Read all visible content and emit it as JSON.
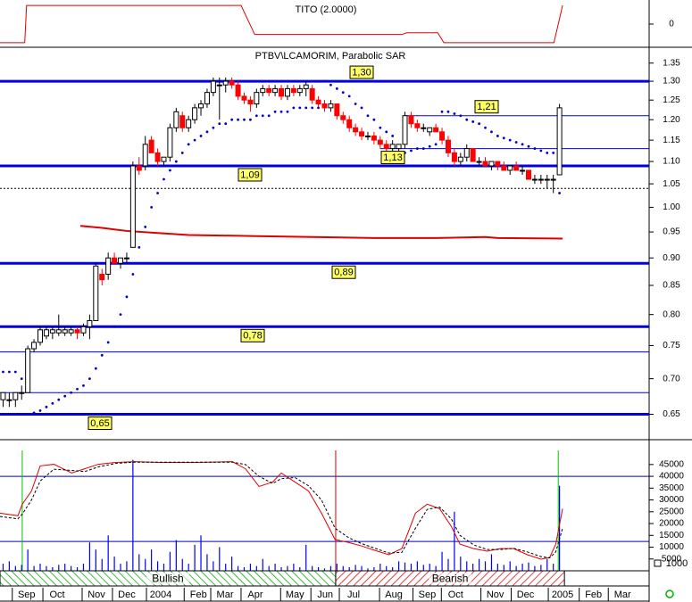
{
  "chart_data": [
    {
      "type": "line",
      "title": "TITO (2.0000)",
      "color": "#e00000",
      "x": [
        -0.5,
        3.5,
        3.8,
        38.5,
        40.7,
        64.5,
        65.3,
        70.3,
        71.3,
        89.1,
        90.5
      ],
      "values": [
        -1,
        -1,
        1,
        1,
        -0.56,
        -0.56,
        -0.47,
        -0.47,
        -1,
        -1,
        1
      ],
      "xlim": [
        -0.5,
        104.5
      ],
      "ylim": [
        -1.2,
        1.2
      ],
      "yticks": [
        0
      ]
    },
    {
      "type": "candlestick",
      "title": "PTBV\\LCAMORIM, Parabolic SAR",
      "log_scale": true,
      "up_color": "#ffffff",
      "down_color": "#ff0000",
      "open": [
        0.67,
        0.67,
        0.67,
        0.68,
        0.68,
        0.745,
        0.755,
        0.765,
        0.77,
        0.77,
        0.77,
        0.77,
        0.775,
        0.77,
        0.78,
        0.79,
        0.87,
        0.87,
        0.9,
        0.89,
        0.9,
        0.92,
        1.09,
        1.09,
        1.15,
        1.12,
        1.1,
        1.11,
        1.18,
        1.21,
        1.18,
        1.2,
        1.23,
        1.24,
        1.27,
        1.29,
        1.29,
        1.3,
        1.29,
        1.26,
        1.25,
        1.24,
        1.27,
        1.28,
        1.27,
        1.28,
        1.26,
        1.28,
        1.27,
        1.28,
        1.28,
        1.25,
        1.24,
        1.23,
        1.24,
        1.21,
        1.2,
        1.18,
        1.17,
        1.16,
        1.16,
        1.15,
        1.14,
        1.13,
        1.13,
        1.14,
        1.21,
        1.19,
        1.18,
        1.17,
        1.18,
        1.17,
        1.15,
        1.12,
        1.1,
        1.11,
        1.13,
        1.1,
        1.1,
        1.09,
        1.1,
        1.09,
        1.08,
        1.09,
        1.08,
        1.08,
        1.06,
        1.06,
        1.06,
        1.06,
        1.07
      ],
      "high": [
        0.68,
        0.68,
        0.68,
        0.69,
        0.75,
        0.76,
        0.78,
        0.78,
        0.78,
        0.8,
        0.78,
        0.78,
        0.78,
        0.785,
        0.8,
        0.89,
        0.88,
        0.91,
        0.91,
        0.9,
        0.91,
        1.1,
        1.11,
        1.16,
        1.16,
        1.13,
        1.11,
        1.19,
        1.23,
        1.22,
        1.21,
        1.24,
        1.25,
        1.28,
        1.31,
        1.31,
        1.31,
        1.31,
        1.3,
        1.27,
        1.26,
        1.28,
        1.29,
        1.29,
        1.29,
        1.29,
        1.29,
        1.29,
        1.29,
        1.3,
        1.29,
        1.26,
        1.25,
        1.25,
        1.24,
        1.22,
        1.21,
        1.19,
        1.18,
        1.17,
        1.17,
        1.16,
        1.15,
        1.15,
        1.14,
        1.22,
        1.22,
        1.2,
        1.19,
        1.18,
        1.19,
        1.18,
        1.16,
        1.13,
        1.12,
        1.14,
        1.13,
        1.11,
        1.11,
        1.1,
        1.1,
        1.1,
        1.09,
        1.1,
        1.09,
        1.08,
        1.07,
        1.07,
        1.07,
        1.07,
        1.24
      ],
      "low": [
        0.66,
        0.66,
        0.66,
        0.67,
        0.68,
        0.74,
        0.75,
        0.76,
        0.76,
        0.765,
        0.765,
        0.765,
        0.76,
        0.765,
        0.76,
        0.79,
        0.85,
        0.86,
        0.89,
        0.88,
        0.89,
        0.92,
        1.07,
        1.08,
        1.12,
        1.09,
        1.09,
        1.1,
        1.17,
        1.17,
        1.17,
        1.19,
        1.21,
        1.23,
        1.26,
        1.2,
        1.27,
        1.28,
        1.25,
        1.24,
        1.22,
        1.23,
        1.26,
        1.26,
        1.26,
        1.25,
        1.25,
        1.26,
        1.26,
        1.26,
        1.24,
        1.23,
        1.22,
        1.22,
        1.2,
        1.19,
        1.17,
        1.16,
        1.15,
        1.15,
        1.14,
        1.13,
        1.12,
        1.12,
        1.12,
        1.13,
        1.18,
        1.17,
        1.17,
        1.16,
        1.17,
        1.14,
        1.11,
        1.09,
        1.09,
        1.1,
        1.1,
        1.09,
        1.09,
        1.08,
        1.08,
        1.08,
        1.07,
        1.08,
        1.07,
        1.06,
        1.05,
        1.05,
        1.04,
        1.03,
        1.07
      ],
      "close": [
        0.68,
        0.67,
        0.68,
        0.68,
        0.745,
        0.755,
        0.775,
        0.775,
        0.775,
        0.775,
        0.775,
        0.775,
        0.77,
        0.78,
        0.79,
        0.885,
        0.86,
        0.9,
        0.89,
        0.9,
        0.9,
        1.09,
        1.08,
        1.14,
        1.12,
        1.1,
        1.11,
        1.18,
        1.22,
        1.18,
        1.2,
        1.23,
        1.24,
        1.27,
        1.3,
        1.29,
        1.3,
        1.29,
        1.26,
        1.25,
        1.24,
        1.27,
        1.28,
        1.27,
        1.28,
        1.26,
        1.28,
        1.27,
        1.28,
        1.29,
        1.25,
        1.24,
        1.23,
        1.24,
        1.21,
        1.2,
        1.18,
        1.17,
        1.16,
        1.16,
        1.15,
        1.14,
        1.13,
        1.14,
        1.14,
        1.21,
        1.19,
        1.18,
        1.18,
        1.18,
        1.17,
        1.15,
        1.12,
        1.1,
        1.11,
        1.13,
        1.1,
        1.1,
        1.09,
        1.1,
        1.09,
        1.08,
        1.09,
        1.08,
        1.08,
        1.06,
        1.06,
        1.06,
        1.06,
        1.06,
        1.23
      ],
      "sar": {
        "color": "#0000d0",
        "values": [
          0.71,
          0.71,
          0.71,
          0.7,
          0.65,
          0.652,
          0.655,
          0.66,
          0.665,
          0.67,
          0.675,
          0.68,
          0.685,
          0.69,
          0.7,
          0.715,
          0.735,
          0.755,
          0.78,
          0.8,
          0.83,
          0.87,
          0.92,
          0.96,
          1.0,
          1.03,
          1.06,
          1.08,
          1.1,
          1.12,
          1.14,
          1.15,
          1.16,
          1.17,
          1.18,
          1.19,
          1.19,
          1.2,
          1.2,
          1.2,
          1.2,
          1.21,
          1.21,
          1.21,
          1.22,
          1.22,
          1.22,
          1.23,
          1.23,
          1.23,
          1.23,
          1.23,
          1.3,
          1.29,
          1.28,
          1.27,
          1.26,
          1.24,
          1.23,
          1.21,
          1.2,
          1.18,
          1.17,
          1.16,
          1.12,
          1.12,
          1.125,
          1.13,
          1.13,
          1.135,
          1.14,
          1.22,
          1.22,
          1.215,
          1.21,
          1.2,
          1.195,
          1.19,
          1.18,
          1.17,
          1.16,
          1.155,
          1.15,
          1.145,
          1.14,
          1.135,
          1.13,
          1.125,
          1.12,
          1.12,
          1.03
        ]
      },
      "ma": {
        "color": "#e00000",
        "x": [
          12.5,
          16,
          20,
          25,
          30,
          40,
          50,
          60,
          70,
          78,
          80,
          90.5
        ],
        "values": [
          0.962,
          0.958,
          0.952,
          0.948,
          0.944,
          0.942,
          0.94,
          0.938,
          0.938,
          0.94,
          0.938,
          0.937
        ]
      },
      "levels": [
        {
          "value": 1.3,
          "label": "1,30",
          "color": "#0000e0",
          "width": 3
        },
        {
          "value": 1.21,
          "label": "1,21",
          "color": "#0000e0",
          "width": 1,
          "from": 65
        },
        {
          "value": 1.13,
          "label": "1,13",
          "color": "#0000e0",
          "width": 1,
          "from": 61
        },
        {
          "value": 1.09,
          "label": "1,09",
          "color": "#0000e0",
          "width": 3
        },
        {
          "value": 1.04,
          "color": "#000000",
          "width": 1,
          "dash": true
        },
        {
          "value": 0.89,
          "label": "0,89",
          "color": "#0000e0",
          "width": 3
        },
        {
          "value": 0.78,
          "label": "0,78",
          "color": "#0000e0",
          "width": 3
        },
        {
          "value": 0.74,
          "color": "#0000e0",
          "width": 1
        },
        {
          "value": 0.68,
          "color": "#0000e0",
          "width": 1
        },
        {
          "value": 0.65,
          "label": "0,65",
          "color": "#0000e0",
          "width": 3
        }
      ],
      "xlim": [
        -0.5,
        104.5
      ],
      "ylim": [
        0.62,
        1.39
      ],
      "yticks": [
        1.35,
        {
          "value": 1.3,
          "label": "1.30"
        },
        1.25,
        {
          "value": 1.2,
          "label": "1.20"
        },
        1.15,
        {
          "value": 1.1,
          "label": "1.10"
        },
        1.05,
        {
          "value": 1,
          "label": "1.00"
        },
        0.95,
        {
          "value": 0.9,
          "label": "0.90"
        },
        0.85,
        {
          "value": 0.8,
          "label": "0.80"
        },
        0.75,
        {
          "value": 0.7,
          "label": "0.70"
        },
        0.65
      ]
    },
    {
      "type": "bar",
      "color": "#0000ff",
      "unit": "1000",
      "values": [
        3000,
        4000,
        2000,
        2500,
        9000,
        2000,
        3000,
        2000,
        1500,
        2500,
        3000,
        2000,
        1500,
        3000,
        12000,
        9000,
        5000,
        15000,
        6000,
        3000,
        4000,
        47000,
        7000,
        5000,
        9000,
        4000,
        3000,
        8000,
        13000,
        5000,
        3000,
        11000,
        15000,
        7000,
        4000,
        10000,
        3000,
        6000,
        2000,
        1500,
        3000,
        2000,
        5000,
        2000,
        3000,
        1500,
        2000,
        3000,
        1500,
        11000,
        2000,
        1500,
        1000,
        2000,
        3000,
        2000,
        1500,
        2500,
        2000,
        1000,
        1500,
        3000,
        2000,
        1500,
        4000,
        3500,
        3000,
        4000,
        2500,
        3000,
        2000,
        8000,
        5000,
        25000,
        6000,
        4000,
        3000,
        5000,
        4000,
        7000,
        3000,
        2500,
        4000,
        2000,
        3000,
        3500,
        2000,
        2500,
        5000,
        3000,
        36000
      ],
      "lines": [
        {
          "color": "#e00000",
          "x": [
            -0.5,
            2.4,
            3.1,
            4.6,
            6.0,
            8.2,
            11.1,
            13.2,
            15.4,
            18.3,
            21.2,
            25.5,
            31.3,
            37.1,
            39.2,
            41.4,
            43.6,
            45.0,
            47.2,
            49.4,
            51.5,
            53.7,
            55.9,
            58.0,
            60.2,
            62.4,
            64.5,
            66.7,
            68.6,
            70.6,
            72.5,
            73.9,
            76.1,
            78.3,
            80.4,
            82.6,
            84.8,
            87.0,
            88.4,
            89.4,
            90.5
          ],
          "values": [
            24400,
            23300,
            28200,
            33800,
            44400,
            45100,
            41400,
            43200,
            45100,
            45900,
            46200,
            45900,
            45900,
            46200,
            43200,
            35700,
            37600,
            41400,
            37600,
            33800,
            24400,
            13200,
            12000,
            10500,
            8600,
            6800,
            9400,
            24400,
            28200,
            26300,
            18800,
            11300,
            9400,
            8300,
            9400,
            9400,
            6800,
            4900,
            5600,
            11300,
            26300
          ]
        },
        {
          "color": "#000000",
          "dash": true,
          "x": [
            -0.5,
            2.4,
            3.1,
            4.6,
            6.0,
            8.2,
            11.1,
            13.2,
            15.4,
            18.3,
            21.2,
            31.3,
            37.1,
            39.2,
            41.4,
            43.6,
            45.0,
            47.2,
            49.4,
            51.5,
            53.7,
            55.9,
            58.0,
            60.2,
            62.4,
            64.5,
            66.7,
            68.6,
            70.6,
            72.5,
            73.9,
            76.1,
            78.3,
            80.4,
            82.6,
            84.8,
            87.0,
            88.4,
            89.4,
            90.5
          ],
          "values": [
            23000,
            22000,
            24000,
            30000,
            38000,
            43000,
            42500,
            42000,
            44000,
            45500,
            46000,
            46000,
            46000,
            45000,
            40000,
            37000,
            39000,
            39500,
            36000,
            30000,
            18000,
            14000,
            11500,
            9500,
            7500,
            7800,
            18000,
            26000,
            27000,
            22000,
            15000,
            11000,
            9000,
            9000,
            9500,
            8000,
            6000,
            5500,
            8000,
            18000
          ]
        }
      ],
      "levels": [
        {
          "value": 40000,
          "color": "#0000c0"
        },
        {
          "value": 12400,
          "color": "#0000c0"
        }
      ],
      "signals": [
        {
          "x": 3.1,
          "color": "#00c000"
        },
        {
          "x": 53.8,
          "color": "#e00000"
        },
        {
          "x": 89.8,
          "color": "#00c000"
        }
      ],
      "bands": [
        {
          "label": "Bullish",
          "from": -0.5,
          "to": 53.8,
          "color": "#00a000"
        },
        {
          "label": "Bearish",
          "from": 53.8,
          "to": 90.8,
          "color": "#e00000"
        }
      ],
      "xlim": [
        -0.5,
        104.5
      ],
      "ylim": [
        0,
        54000
      ],
      "yticks": [
        45000,
        40000,
        35000,
        30000,
        25000,
        20000,
        15000,
        10000,
        5000
      ],
      "xticks": [
        {
          "value": 3.8,
          "label": "Sep"
        },
        {
          "value": 8.75,
          "label": "Oct"
        },
        {
          "value": 15.1,
          "label": "Nov"
        },
        {
          "value": 20.0,
          "label": "Dec"
        },
        {
          "value": 25.5,
          "label": "2004"
        },
        {
          "value": 31.6,
          "label": "Feb"
        },
        {
          "value": 35.9,
          "label": "Mar"
        },
        {
          "value": 40.8,
          "label": "Apr"
        },
        {
          "value": 47.2,
          "label": "May"
        },
        {
          "value": 52.1,
          "label": "Jun"
        },
        {
          "value": 56.7,
          "label": "Jul"
        },
        {
          "value": 63.2,
          "label": "Aug"
        },
        {
          "value": 68.6,
          "label": "Sep"
        },
        {
          "value": 73.2,
          "label": "Oct"
        },
        {
          "value": 79.6,
          "label": "Nov"
        },
        {
          "value": 84.5,
          "label": "Dec"
        },
        {
          "value": 90.5,
          "label": "2005"
        },
        {
          "value": 95.5,
          "label": "Feb"
        },
        {
          "value": 100.2,
          "label": "Mar"
        }
      ]
    }
  ]
}
